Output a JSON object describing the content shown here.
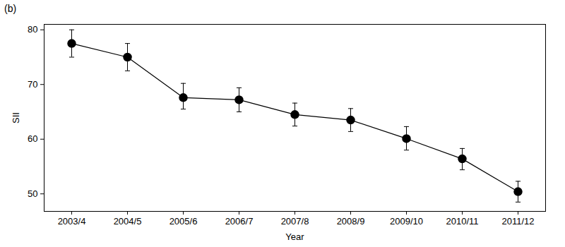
{
  "chart_data": {
    "type": "line",
    "title": "(b)",
    "x_label": "Year",
    "y_label": "SII",
    "categories": [
      "2003/4",
      "2004/5",
      "2005/6",
      "2006/7",
      "2007/8",
      "2008/9",
      "2009/10",
      "2010/11",
      "2011/12"
    ],
    "values": [
      77.5,
      75.0,
      67.6,
      67.2,
      64.5,
      63.5,
      60.1,
      56.4,
      50.4
    ],
    "lower": [
      75.0,
      72.5,
      65.5,
      65.0,
      62.4,
      61.4,
      58.0,
      54.4,
      48.5
    ],
    "upper": [
      80.0,
      77.5,
      70.2,
      69.4,
      66.6,
      65.6,
      62.3,
      58.3,
      52.3
    ],
    "color": "#000000",
    "marker": "circle",
    "ylim": [
      46.8,
      81
    ],
    "yticks": [
      50,
      60,
      70,
      80
    ],
    "grid": false
  }
}
